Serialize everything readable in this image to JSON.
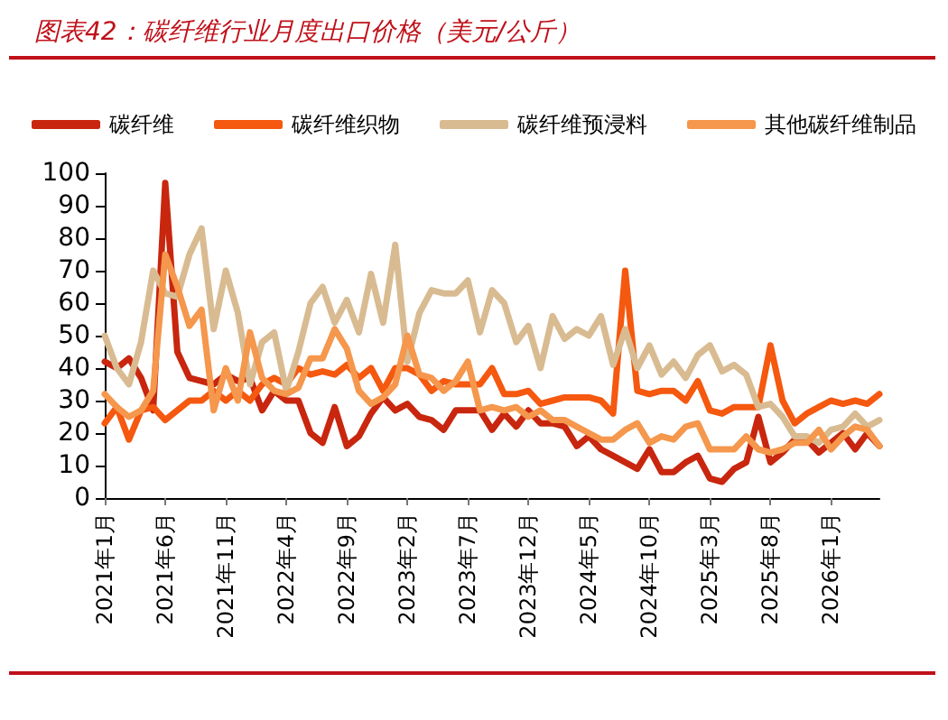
{
  "chart_data": {
    "type": "line",
    "title": "图表42：碳纤维行业月度出口价格（美元/公斤）",
    "categories": [
      "2021年1月",
      null,
      null,
      null,
      null,
      "2021年6月",
      null,
      null,
      null,
      null,
      "2021年11月",
      null,
      null,
      null,
      null,
      "2022年4月",
      null,
      null,
      null,
      null,
      "2022年9月",
      null,
      null,
      null,
      null,
      "2023年2月",
      null,
      null,
      null,
      null,
      "2023年7月",
      null,
      null,
      null,
      null,
      "2023年12月",
      null,
      null,
      null,
      null,
      "2024年5月",
      null,
      null,
      null,
      null,
      "2024年10月",
      null,
      null,
      null,
      null,
      "2025年3月",
      null,
      null,
      null,
      null,
      "2025年8月",
      null,
      null,
      null,
      null,
      "2026年1月",
      null,
      null,
      null,
      null
    ],
    "series": [
      {
        "name": "碳纤维",
        "color": "#c8260e",
        "values": [
          42,
          40,
          43,
          37,
          27,
          97,
          45,
          37,
          36,
          35,
          38,
          36,
          37,
          27,
          33,
          30,
          30,
          20,
          17,
          28,
          16,
          19,
          26,
          31,
          27,
          29,
          25,
          24,
          21,
          27,
          27,
          27,
          21,
          26,
          22,
          27,
          23,
          23,
          22,
          16,
          19,
          15,
          13,
          11,
          9,
          15,
          8,
          8,
          11,
          13,
          6,
          5,
          9,
          11,
          25,
          11,
          14,
          18,
          18,
          14,
          17,
          20,
          15,
          20,
          16
        ]
      },
      {
        "name": "碳纤维织物",
        "color": "#f5580f",
        "values": [
          23,
          28,
          18,
          27,
          28,
          24,
          27,
          30,
          30,
          33,
          30,
          33,
          30,
          35,
          37,
          35,
          40,
          38,
          39,
          38,
          41,
          37,
          40,
          33,
          40,
          40,
          38,
          33,
          36,
          35,
          35,
          35,
          40,
          32,
          32,
          33,
          29,
          30,
          31,
          31,
          31,
          30,
          26,
          70,
          33,
          32,
          33,
          33,
          30,
          36,
          27,
          26,
          28,
          28,
          28,
          47,
          30,
          23,
          26,
          28,
          30,
          29,
          30,
          29,
          32
        ]
      },
      {
        "name": "碳纤维预浸料",
        "color": "#d9bb92",
        "values": [
          50,
          40,
          35,
          48,
          70,
          63,
          62,
          75,
          83,
          52,
          70,
          57,
          35,
          48,
          51,
          33,
          45,
          60,
          65,
          54,
          61,
          51,
          69,
          54,
          78,
          42,
          57,
          64,
          63,
          63,
          67,
          51,
          64,
          60,
          48,
          53,
          40,
          56,
          49,
          52,
          50,
          56,
          41,
          52,
          40,
          47,
          38,
          42,
          37,
          44,
          47,
          39,
          41,
          38,
          28,
          29,
          25,
          19,
          19,
          17,
          21,
          22,
          26,
          22,
          24
        ]
      },
      {
        "name": "其他碳纤维制品",
        "color": "#f5974c",
        "values": [
          32,
          28,
          25,
          27,
          33,
          75,
          65,
          53,
          58,
          27,
          40,
          30,
          51,
          37,
          33,
          32,
          34,
          43,
          43,
          52,
          46,
          33,
          29,
          31,
          35,
          50,
          38,
          37,
          33,
          36,
          42,
          27,
          28,
          27,
          28,
          25,
          27,
          24,
          24,
          22,
          20,
          18,
          18,
          21,
          23,
          17,
          19,
          18,
          22,
          23,
          15,
          15,
          15,
          19,
          15,
          14,
          15,
          17,
          17,
          21,
          15,
          19,
          22,
          21,
          16
        ]
      }
    ],
    "ylim": [
      0,
      100
    ],
    "yticks": [
      0,
      10,
      20,
      30,
      40,
      50,
      60,
      70,
      80,
      90,
      100
    ],
    "grid": false,
    "legend": "top",
    "marker": "none",
    "line_style": "solid"
  }
}
